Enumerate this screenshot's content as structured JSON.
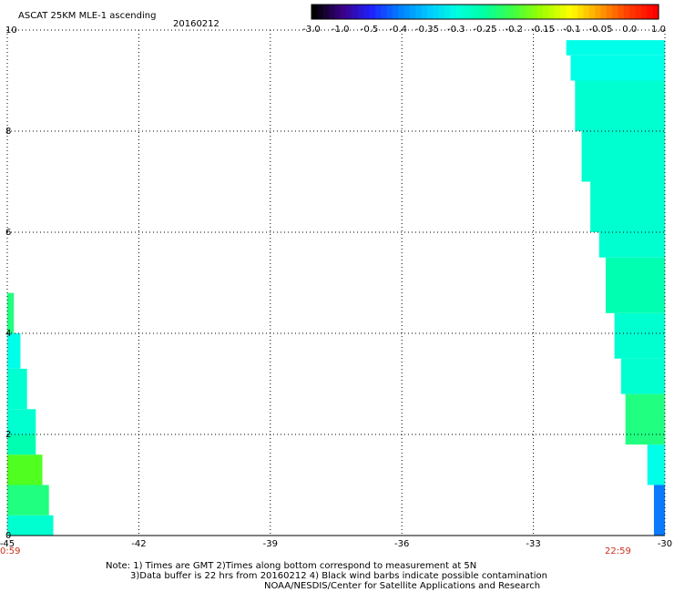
{
  "chart_data": {
    "type": "heatmap",
    "title": "ASCAT 25KM MLE-1 ascending",
    "date": "20160212",
    "xlim": [
      -45,
      -30
    ],
    "ylim": [
      0,
      10
    ],
    "x_ticks": [
      "-45",
      "-42",
      "-39",
      "-36",
      "-33",
      "-30"
    ],
    "y_ticks": [
      "0",
      "2",
      "4",
      "6",
      "8",
      "10"
    ],
    "grid": true,
    "time_labels": {
      "left": "0:59",
      "right": "22:59"
    },
    "colorbar": {
      "labels": [
        "-3.0",
        "-1.0",
        "-0.5",
        "-0.4",
        "-0.35",
        "-0.3",
        "-0.25",
        "-0.2",
        "-0.15",
        "-0.1",
        "-0.05",
        "0.0",
        "1.0"
      ],
      "colors": [
        "#000000",
        "#3a0088",
        "#2020ff",
        "#0080ff",
        "#00c8ff",
        "#00ffe0",
        "#00ffa0",
        "#40ff40",
        "#a0ff00",
        "#ffff00",
        "#ffa000",
        "#ff4000",
        "#ff0000"
      ]
    },
    "swaths": [
      {
        "name": "left",
        "rows": [
          {
            "y0": 0.0,
            "y1": 0.4,
            "x0": -45.0,
            "x1": -43.95,
            "value": -0.28
          },
          {
            "y0": 0.4,
            "y1": 1.0,
            "x0": -45.0,
            "x1": -44.05,
            "value": -0.22
          },
          {
            "y0": 1.0,
            "y1": 1.6,
            "x0": -45.0,
            "x1": -44.2,
            "value": -0.18
          },
          {
            "y0": 1.6,
            "y1": 2.0,
            "x0": -45.0,
            "x1": -44.35,
            "value": -0.25
          },
          {
            "y0": 2.0,
            "y1": 2.5,
            "x0": -45.0,
            "x1": -44.35,
            "value": -0.27
          },
          {
            "y0": 2.5,
            "y1": 3.3,
            "x0": -45.0,
            "x1": -44.55,
            "value": -0.28
          },
          {
            "y0": 3.3,
            "y1": 4.0,
            "x0": -45.0,
            "x1": -44.7,
            "value": -0.29
          },
          {
            "y0": 4.0,
            "y1": 4.8,
            "x0": -45.0,
            "x1": -44.85,
            "value": -0.2
          }
        ]
      },
      {
        "name": "right",
        "rows": [
          {
            "y0": 0.0,
            "y1": 1.0,
            "x0": -30.25,
            "x1": -30.0,
            "value": -0.38
          },
          {
            "y0": 1.0,
            "y1": 1.8,
            "x0": -30.4,
            "x1": -30.0,
            "value": -0.32
          },
          {
            "y0": 1.8,
            "y1": 2.8,
            "x0": -30.9,
            "x1": -30.0,
            "value": -0.22
          },
          {
            "y0": 2.8,
            "y1": 3.5,
            "x0": -31.0,
            "x1": -30.0,
            "value": -0.27
          },
          {
            "y0": 3.5,
            "y1": 4.4,
            "x0": -31.15,
            "x1": -30.0,
            "value": -0.28
          },
          {
            "y0": 4.4,
            "y1": 5.5,
            "x0": -31.35,
            "x1": -30.0,
            "value": -0.25
          },
          {
            "y0": 5.5,
            "y1": 6.0,
            "x0": -31.5,
            "x1": -30.0,
            "value": -0.26
          },
          {
            "y0": 6.0,
            "y1": 7.0,
            "x0": -31.7,
            "x1": -30.0,
            "value": -0.27
          },
          {
            "y0": 7.0,
            "y1": 8.0,
            "x0": -31.9,
            "x1": -30.0,
            "value": -0.28
          },
          {
            "y0": 8.0,
            "y1": 9.0,
            "x0": -32.05,
            "x1": -30.0,
            "value": -0.28
          },
          {
            "y0": 9.0,
            "y1": 9.5,
            "x0": -32.15,
            "x1": -30.0,
            "value": -0.29
          },
          {
            "y0": 9.5,
            "y1": 9.8,
            "x0": -32.25,
            "x1": -30.0,
            "value": -0.3
          }
        ]
      }
    ]
  },
  "notes": {
    "line1": "Note: 1) Times are GMT 2)Times along bottom correspond to measurement at 5N",
    "line2": "3)Data buffer is 22 hrs from 20160212 4) Black wind barbs indicate possible contamination",
    "line3": "NOAA/NESDIS/Center for Satellite Applications and Research"
  }
}
